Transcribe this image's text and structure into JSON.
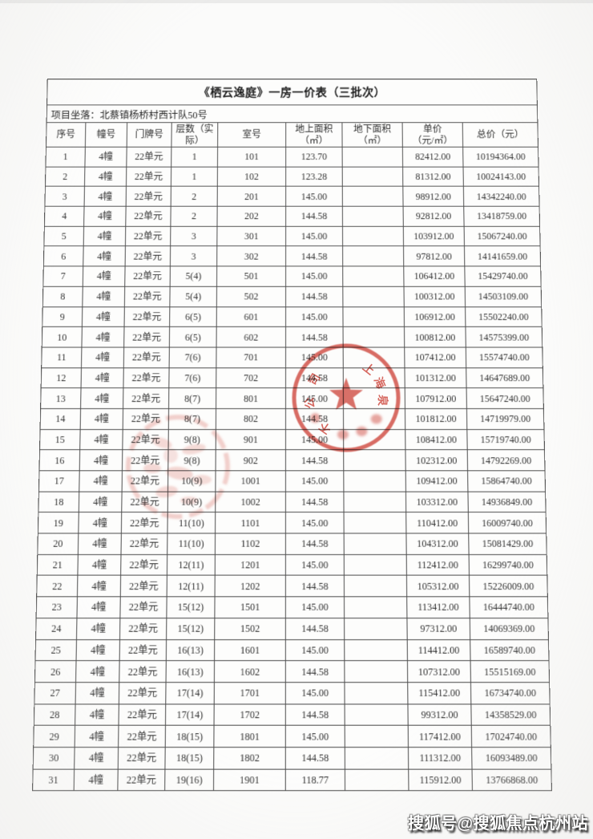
{
  "document": {
    "title": "《栖云逸庭》一房一价表（三批次）",
    "location_label": "项目坐落：北蔡镇杨桥村西计队50号"
  },
  "table": {
    "headers": [
      "序号",
      "幢号",
      "门牌号",
      "层数（实\n际）",
      "室号",
      "地上面积\n（㎡）",
      "地下面积\n（㎡）",
      "单价\n（元/㎡）",
      "总价（元）"
    ],
    "rows": [
      [
        "1",
        "4幢",
        "22单元",
        "1",
        "101",
        "123.70",
        "",
        "82412.00",
        "10194364.00"
      ],
      [
        "2",
        "4幢",
        "22单元",
        "1",
        "102",
        "123.28",
        "",
        "81312.00",
        "10024143.00"
      ],
      [
        "3",
        "4幢",
        "22单元",
        "2",
        "201",
        "145.00",
        "",
        "98912.00",
        "14342240.00"
      ],
      [
        "4",
        "4幢",
        "22单元",
        "2",
        "202",
        "144.58",
        "",
        "92812.00",
        "13418759.00"
      ],
      [
        "5",
        "4幢",
        "22单元",
        "3",
        "301",
        "145.00",
        "",
        "103912.00",
        "15067240.00"
      ],
      [
        "6",
        "4幢",
        "22单元",
        "3",
        "302",
        "144.58",
        "",
        "97812.00",
        "14141659.00"
      ],
      [
        "7",
        "4幢",
        "22单元",
        "5(4)",
        "501",
        "145.00",
        "",
        "106412.00",
        "15429740.00"
      ],
      [
        "8",
        "4幢",
        "22单元",
        "5(4)",
        "502",
        "144.58",
        "",
        "100312.00",
        "14503109.00"
      ],
      [
        "9",
        "4幢",
        "22单元",
        "6(5)",
        "601",
        "145.00",
        "",
        "106912.00",
        "15502240.00"
      ],
      [
        "10",
        "4幢",
        "22单元",
        "6(5)",
        "602",
        "144.58",
        "",
        "100812.00",
        "14575399.00"
      ],
      [
        "11",
        "4幢",
        "22单元",
        "7(6)",
        "701",
        "145.00",
        "",
        "107412.00",
        "15574740.00"
      ],
      [
        "12",
        "4幢",
        "22单元",
        "7(6)",
        "702",
        "144.58",
        "",
        "101312.00",
        "14647689.00"
      ],
      [
        "13",
        "4幢",
        "22单元",
        "8(7)",
        "801",
        "145.00",
        "",
        "107912.00",
        "15647240.00"
      ],
      [
        "14",
        "4幢",
        "22单元",
        "8(7)",
        "802",
        "144.58",
        "",
        "101812.00",
        "14719979.00"
      ],
      [
        "15",
        "4幢",
        "22单元",
        "9(8)",
        "901",
        "145.00",
        "",
        "108412.00",
        "15719740.00"
      ],
      [
        "16",
        "4幢",
        "22单元",
        "9(8)",
        "902",
        "144.58",
        "",
        "102312.00",
        "14792269.00"
      ],
      [
        "17",
        "4幢",
        "22单元",
        "10(9)",
        "1001",
        "145.00",
        "",
        "109412.00",
        "15864740.00"
      ],
      [
        "18",
        "4幢",
        "22单元",
        "10(9)",
        "1002",
        "144.58",
        "",
        "103312.00",
        "14936849.00"
      ],
      [
        "19",
        "4幢",
        "22单元",
        "11(10)",
        "1101",
        "145.00",
        "",
        "110412.00",
        "16009740.00"
      ],
      [
        "20",
        "4幢",
        "22单元",
        "11(10)",
        "1102",
        "144.58",
        "",
        "104312.00",
        "15081429.00"
      ],
      [
        "21",
        "4幢",
        "22单元",
        "12(11)",
        "1201",
        "145.00",
        "",
        "112412.00",
        "16299740.00"
      ],
      [
        "22",
        "4幢",
        "22单元",
        "12(11)",
        "1202",
        "144.58",
        "",
        "105312.00",
        "15226009.00"
      ],
      [
        "23",
        "4幢",
        "22单元",
        "15(12)",
        "1501",
        "145.00",
        "",
        "113412.00",
        "16444740.00"
      ],
      [
        "24",
        "4幢",
        "22单元",
        "15(12)",
        "1502",
        "144.58",
        "",
        "97312.00",
        "14069369.00"
      ],
      [
        "25",
        "4幢",
        "22单元",
        "16(13)",
        "1601",
        "145.00",
        "",
        "114412.00",
        "16589740.00"
      ],
      [
        "26",
        "4幢",
        "22单元",
        "16(13)",
        "1602",
        "144.58",
        "",
        "107312.00",
        "15515169.00"
      ],
      [
        "27",
        "4幢",
        "22单元",
        "17(14)",
        "1701",
        "145.00",
        "",
        "115412.00",
        "16734740.00"
      ],
      [
        "28",
        "4幢",
        "22单元",
        "17(14)",
        "1702",
        "144.58",
        "",
        "99312.00",
        "14358529.00"
      ],
      [
        "29",
        "4幢",
        "22单元",
        "18(15)",
        "1801",
        "145.00",
        "",
        "117412.00",
        "17024740.00"
      ],
      [
        "30",
        "4幢",
        "22单元",
        "18(15)",
        "1802",
        "144.58",
        "",
        "111312.00",
        "16093489.00"
      ],
      [
        "31",
        "4幢",
        "22单元",
        "19(16)",
        "1901",
        "118.77",
        "",
        "115912.00",
        "13766868.00"
      ]
    ]
  },
  "stamps": {
    "primary": {
      "color": "#cf4238",
      "chars": [
        "上",
        "海",
        "泉",
        "不",
        "公",
        "司"
      ]
    },
    "secondary": {
      "color": "#d4564b",
      "legible": false
    }
  },
  "watermark": {
    "text": "搜狐号@搜狐焦点杭州站",
    "color": "#ffffff"
  }
}
